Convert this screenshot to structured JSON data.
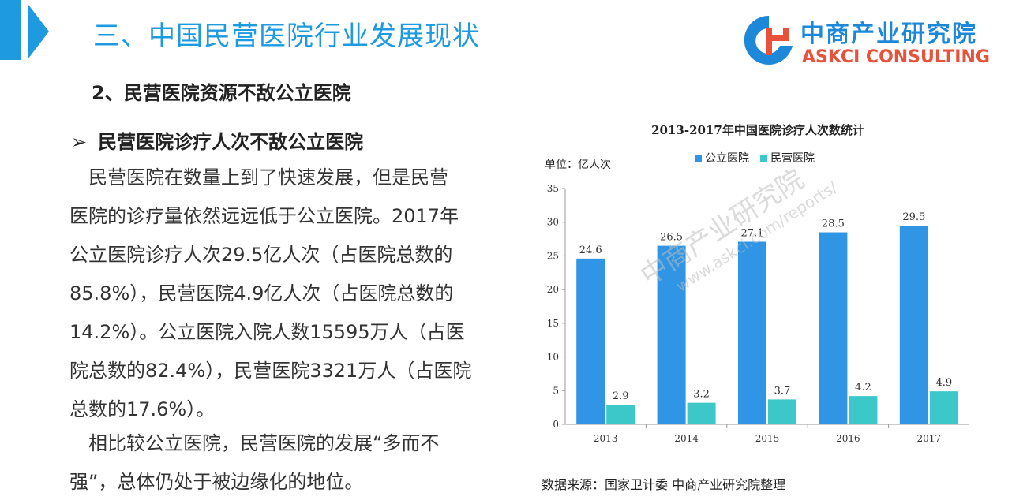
{
  "header": {
    "title": "三、中国民营医院行业发展现状"
  },
  "logo": {
    "cn": "中商产业研究院",
    "en": "ASKCI CONSULTING"
  },
  "section": {
    "subtitle": "2、民营医院资源不敌公立医院",
    "bullet_marker": "➢",
    "bullet": "民营医院诊疗人次不敌公立医院",
    "paragraph1_lines": [
      "　民营医院在数量上到了快速发展，但是民营",
      "医院的诊疗量依然远远低于公立医院。2017年",
      "公立医院诊疗人次29.5亿人次（占医院总数的",
      "85.8%），民营医院4.9亿人次（占医院总数的",
      "14.2%）。公立医院入院人数15595万人（占医",
      "院总数的82.4%），民营医院3321万人（占医院",
      "总数的17.6%）。"
    ],
    "paragraph2_lines": [
      "　相比较公立医院，民营医院的发展“多而不",
      "强”，总体仍处于被边缘化的地位。"
    ]
  },
  "chart_data": {
    "type": "bar",
    "title": "2013-2017年中国医院诊疗人次数统计",
    "unit_label": "单位：亿人次",
    "categories": [
      "2013",
      "2014",
      "2015",
      "2016",
      "2017"
    ],
    "series": [
      {
        "name": "公立医院",
        "values": [
          24.6,
          26.5,
          27.1,
          28.5,
          29.5
        ],
        "color": "#2f95e4"
      },
      {
        "name": "民营医院",
        "values": [
          2.9,
          3.2,
          3.7,
          4.2,
          4.9
        ],
        "color": "#3cc8c8"
      }
    ],
    "ylim": [
      0,
      35
    ],
    "yticks": [
      0,
      5,
      10,
      15,
      20,
      25,
      30,
      35
    ],
    "grid": false,
    "legend": "top"
  },
  "watermark": {
    "cn": "中商产业研究院",
    "url": "www.askci.com/reports/"
  },
  "source": "数据来源：国家卫计委 中商产业研究院整理",
  "colors": {
    "accent": "#1e9ae0",
    "logo_red": "#e8523a",
    "public": "#2f95e4",
    "private": "#3cc8c8"
  }
}
